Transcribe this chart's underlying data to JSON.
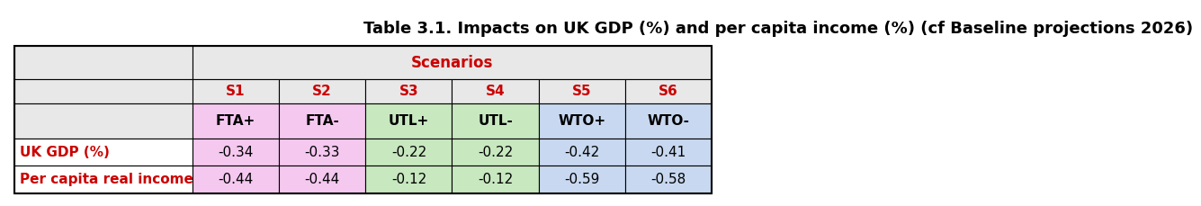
{
  "title": "Table 3.1. Impacts on UK GDP (%) and per capita income (%) (cf Baseline projections 2026)",
  "scenarios_label": "Scenarios",
  "col_headers_s": [
    "S1",
    "S2",
    "S3",
    "S4",
    "S5",
    "S6"
  ],
  "col_headers_sub": [
    "FTA+",
    "FTA-",
    "UTL+",
    "UTL-",
    "WTO+",
    "WTO-"
  ],
  "row_labels": [
    "UK GDP (%)",
    "Per capita real income"
  ],
  "data": [
    [
      "-0.34",
      "-0.33",
      "-0.22",
      "-0.22",
      "-0.42",
      "-0.41"
    ],
    [
      "-0.44",
      "-0.44",
      "-0.12",
      "-0.12",
      "-0.59",
      "-0.58"
    ]
  ],
  "title_color": "#000000",
  "scenarios_color": "#cc0000",
  "s_header_color": "#cc0000",
  "row_label_color": "#cc0000",
  "data_text_color": "#000000",
  "sub_header_text_color": "#000000",
  "bg_outer": "#ffffff",
  "bg_header_row": "#e8e8e8",
  "bg_s_row": "#e8e8e8",
  "bg_sub_row_left": "#e8e8e8",
  "bg_fta_col": "#f5c8f0",
  "bg_utl_col": "#c8e8c0",
  "bg_wto_col": "#c8d8f0",
  "bg_data_left": "#ffffff",
  "border_color": "#000000",
  "title_fontsize": 13,
  "header_fontsize": 11,
  "data_fontsize": 11,
  "font_family": "DejaVu Sans"
}
